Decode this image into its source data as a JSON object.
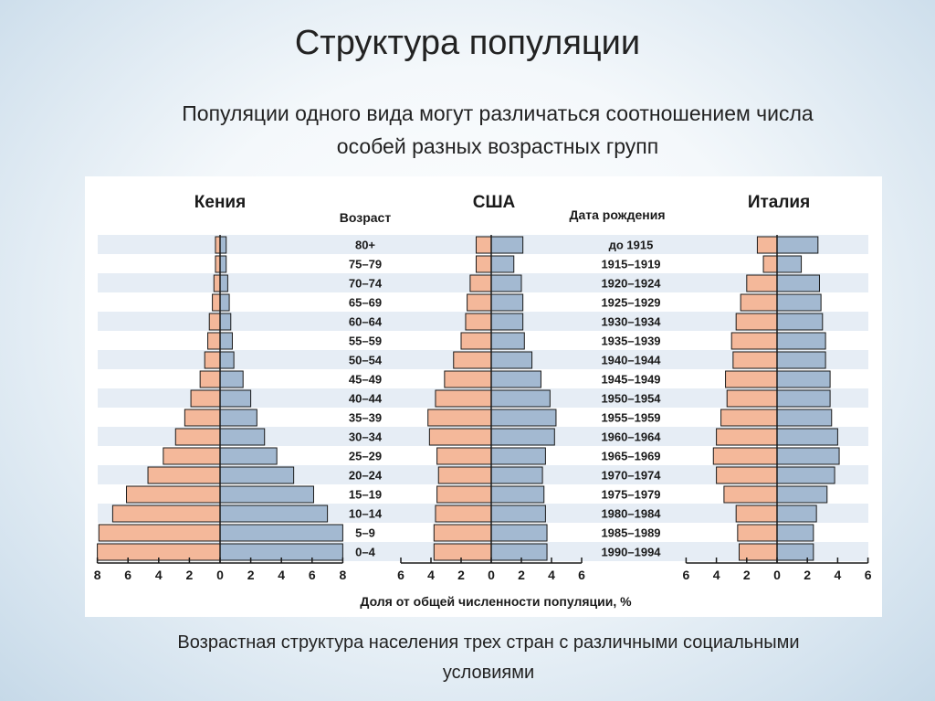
{
  "slide": {
    "title": "Структура популяции",
    "subtitle_line1": "Популяции одного вида могут различаться соотношением числа",
    "subtitle_line2": "особей разных возрастных групп",
    "caption_line1": "Возрастная структура населения трех стран с различными социальными",
    "caption_line2": "условиями"
  },
  "colors": {
    "male_fill": "#f4b89a",
    "female_fill": "#a3b9d1",
    "stripe": "#e6edf5",
    "bar_stroke": "#1a1a1a"
  },
  "chart_data": {
    "type": "population-pyramid",
    "age_header": "Возраст",
    "birth_header": "Дата рождения",
    "xlabel": "Доля от общей численности популяции, %",
    "age_groups": [
      "80+",
      "75–79",
      "70–74",
      "65–69",
      "60–64",
      "55–59",
      "50–54",
      "45–49",
      "40–44",
      "35–39",
      "30–34",
      "25–29",
      "20–24",
      "15–19",
      "10–14",
      "5–9",
      "0–4"
    ],
    "birth_years": [
      "до 1915",
      "1915–1919",
      "1920–1924",
      "1925–1929",
      "1930–1934",
      "1935–1939",
      "1940–1944",
      "1945–1949",
      "1950–1954",
      "1955–1959",
      "1960–1964",
      "1965–1969",
      "1970–1974",
      "1975–1979",
      "1980–1984",
      "1985–1989",
      "1990–1994"
    ],
    "charts": [
      {
        "name": "Кения",
        "xlim": 8,
        "ticks": [
          "8",
          "6",
          "4",
          "2",
          "0",
          "2",
          "4",
          "6",
          "8"
        ],
        "left": [
          0.3,
          0.3,
          0.4,
          0.5,
          0.7,
          0.8,
          1.0,
          1.3,
          1.9,
          2.3,
          2.9,
          3.7,
          4.7,
          6.1,
          7.0,
          7.9,
          8.0
        ],
        "right": [
          0.4,
          0.4,
          0.5,
          0.6,
          0.7,
          0.8,
          0.9,
          1.5,
          2.0,
          2.4,
          2.9,
          3.7,
          4.8,
          6.1,
          7.0,
          8.0,
          8.0
        ]
      },
      {
        "name": "США",
        "xlim": 6,
        "ticks": [
          "6",
          "4",
          "2",
          "0",
          "2",
          "4",
          "6"
        ],
        "left": [
          1.0,
          1.0,
          1.4,
          1.6,
          1.7,
          2.0,
          2.5,
          3.1,
          3.7,
          4.2,
          4.1,
          3.6,
          3.5,
          3.6,
          3.7,
          3.8,
          3.8
        ],
        "right": [
          2.1,
          1.5,
          2.0,
          2.1,
          2.1,
          2.2,
          2.7,
          3.3,
          3.9,
          4.3,
          4.2,
          3.6,
          3.4,
          3.5,
          3.6,
          3.7,
          3.7
        ]
      },
      {
        "name": "Италия",
        "xlim": 6,
        "ticks": [
          "6",
          "4",
          "2",
          "0",
          "2",
          "4",
          "6"
        ],
        "left": [
          1.3,
          0.9,
          2.0,
          2.4,
          2.7,
          3.0,
          2.9,
          3.4,
          3.3,
          3.7,
          4.0,
          4.2,
          4.0,
          3.5,
          2.7,
          2.6,
          2.5
        ],
        "right": [
          2.7,
          1.6,
          2.8,
          2.9,
          3.0,
          3.2,
          3.2,
          3.5,
          3.5,
          3.6,
          4.0,
          4.1,
          3.8,
          3.3,
          2.6,
          2.4,
          2.4
        ]
      }
    ]
  }
}
